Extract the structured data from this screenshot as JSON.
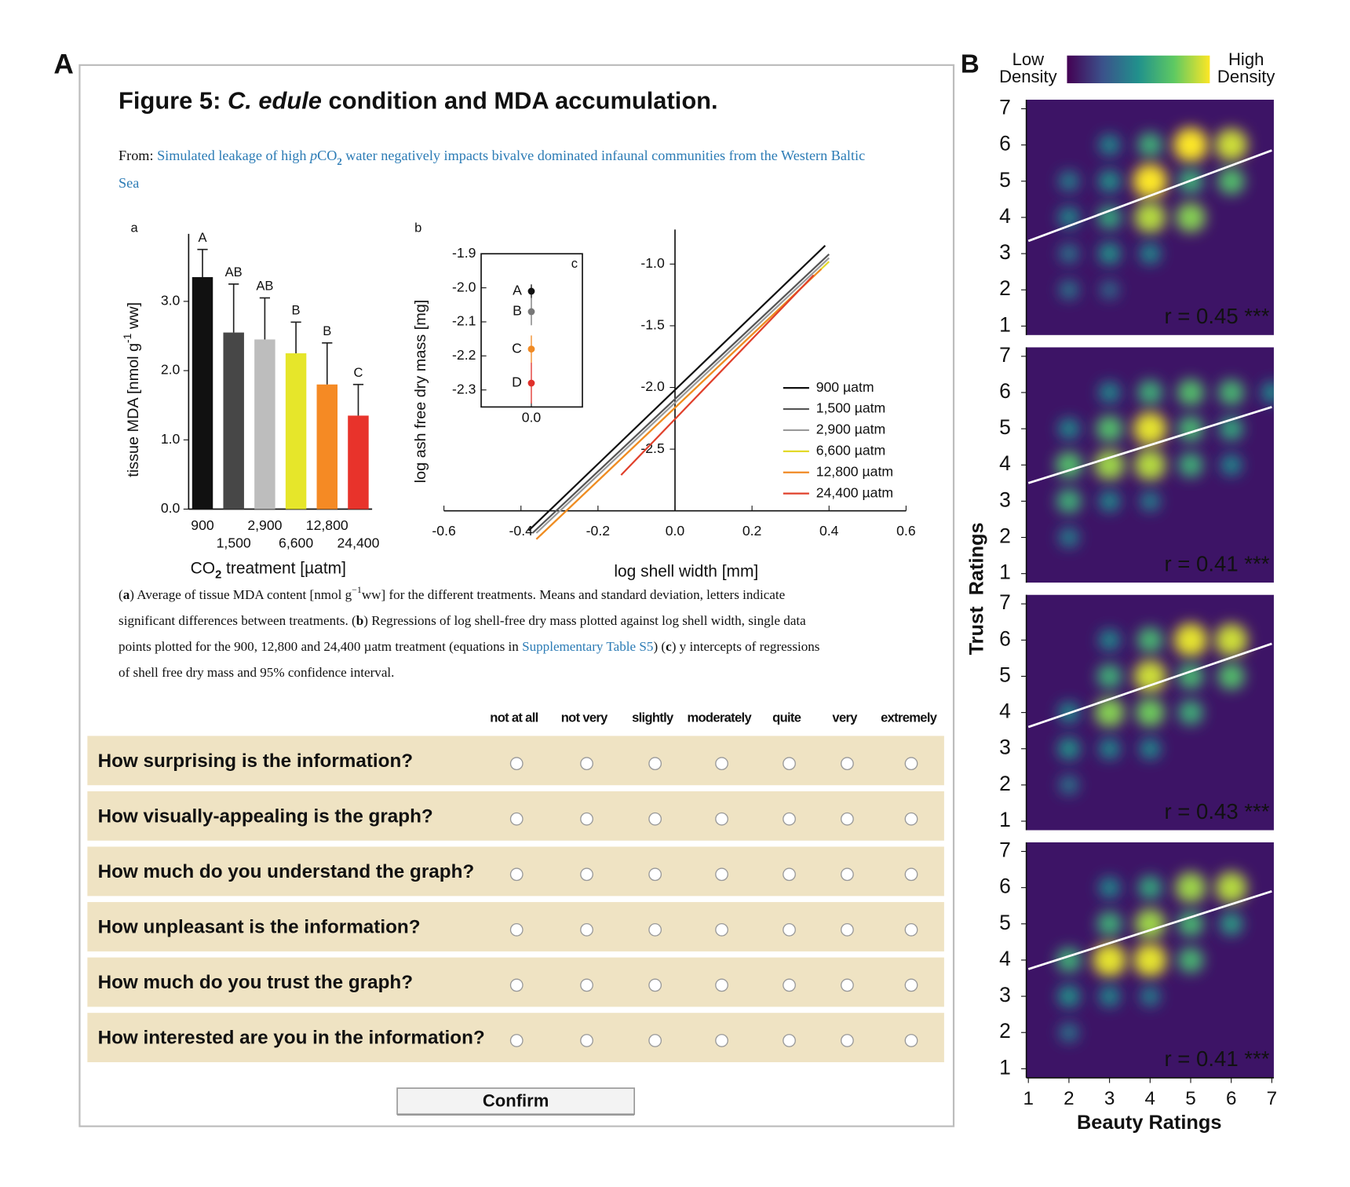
{
  "panel_a": {
    "label": "A",
    "title": [
      {
        "text": "Figure 5: "
      },
      {
        "text": "C. edule",
        "style": "i"
      },
      {
        "text": " condition and MDA accumulation."
      }
    ],
    "source": [
      [
        {
          "text": "From: "
        },
        {
          "text": "Simulated leakage of high ",
          "style": "link"
        },
        {
          "text": "p",
          "style": "link i"
        },
        {
          "text": "CO",
          "style": "link"
        },
        {
          "text": "2",
          "style": "link sub"
        },
        {
          "text": " water negatively impacts bivalve dominated infaunal communities from the Western Baltic",
          "style": "link"
        }
      ],
      [
        {
          "text": "Sea",
          "style": "link"
        }
      ]
    ],
    "bar_chart": {
      "type": "bar",
      "label": "a",
      "categories": [
        "900",
        "1,500",
        "2,900",
        "6,600",
        "12,800",
        "24,400"
      ],
      "values": [
        3.35,
        2.55,
        2.45,
        2.25,
        1.8,
        1.35
      ],
      "errors": [
        0.4,
        0.7,
        0.6,
        0.45,
        0.6,
        0.45
      ],
      "letters": [
        "A",
        "AB",
        "AB",
        "B",
        "B",
        "C"
      ],
      "colors": [
        "#111111",
        "#474747",
        "#bdbdbd",
        "#e6e62a",
        "#f58a24",
        "#e8332b"
      ],
      "ylim": [
        0,
        3.9
      ],
      "yticks": [
        {
          "value": 0,
          "label": "0.0"
        },
        {
          "value": 1,
          "label": "1.0"
        },
        {
          "value": 2,
          "label": "2.0"
        },
        {
          "value": 3,
          "label": "3.0"
        }
      ],
      "ylabel": [
        {
          "text": "tissue MDA [nmol g"
        },
        {
          "text": "-1",
          "style": "sup"
        },
        {
          "text": " ww]"
        }
      ],
      "xlabel": [
        {
          "text": "CO"
        },
        {
          "text": "2",
          "style": "sub"
        },
        {
          "text": " treatment [µatm]"
        }
      ]
    },
    "regression_chart": {
      "type": "line",
      "label": "b",
      "series": [
        {
          "name": "900 µatm",
          "color": "#111111",
          "x": [
            -0.38,
            0.39
          ],
          "y": [
            -3.16,
            -0.85
          ]
        },
        {
          "name": "1,500 µatm",
          "color": "#555555",
          "x": [
            -0.37,
            0.4
          ],
          "y": [
            -3.18,
            -0.92
          ]
        },
        {
          "name": "2,900 µatm",
          "color": "#9a9a9a",
          "x": [
            -0.36,
            0.4
          ],
          "y": [
            -3.18,
            -0.95
          ]
        },
        {
          "name": "6,600 µatm",
          "color": "#e3d92a",
          "x": [
            -0.35,
            0.4
          ],
          "y": [
            -3.2,
            -0.98
          ]
        },
        {
          "name": "12,800 µatm",
          "color": "#f08a24",
          "x": [
            -0.36,
            0.38
          ],
          "y": [
            -3.23,
            -1.04
          ]
        },
        {
          "name": "24,400 µatm",
          "color": "#e0402b",
          "x": [
            -0.14,
            0.36
          ],
          "y": [
            -2.71,
            -1.09
          ]
        }
      ],
      "xlim": [
        -0.6,
        0.6
      ],
      "ylim": [
        -3.0,
        -0.72
      ],
      "xticks": [
        -0.6,
        -0.4,
        -0.2,
        {
          "value": 0,
          "label": "0.0"
        },
        0.2,
        0.4,
        0.6
      ],
      "yticks": [
        {
          "value": -1,
          "label": "-1.0"
        },
        -1.5,
        {
          "value": -2,
          "label": "-2.0"
        },
        -2.5
      ],
      "xlabel": "log shell width [mm]",
      "ylabel": "log ash free dry mass [mg]",
      "inset": {
        "label": "c",
        "categories": [
          "A",
          "B",
          "C",
          "D"
        ],
        "values": [
          -2.01,
          -2.07,
          -2.18,
          -2.28
        ],
        "errors": [
          0.02,
          0.04,
          0.04,
          0.06
        ],
        "colors": [
          "#111111",
          "#777777",
          "#f08a24",
          "#e0302b"
        ],
        "ylim": [
          -2.35,
          -1.9
        ],
        "yticks": [
          -1.9,
          {
            "value": -2,
            "label": "-2.0"
          },
          -2.1,
          -2.2,
          -2.3
        ],
        "xticks": [
          {
            "value": 0,
            "label": "0.0"
          }
        ]
      }
    },
    "caption": [
      [
        {
          "text": "("
        },
        {
          "text": "a",
          "style": "b"
        },
        {
          "text": ") Average of tissue MDA content [nmol g"
        },
        {
          "text": "−1",
          "style": "sup"
        },
        {
          "text": "ww] for the different treatments. Means and standard deviation, letters indicate"
        }
      ],
      [
        {
          "text": "significant differences between treatments. ("
        },
        {
          "text": "b",
          "style": "b"
        },
        {
          "text": ") Regressions of log shell-free dry mass plotted against log shell width, single data"
        }
      ],
      [
        {
          "text": "points plotted for the 900, 12,800 and 24,400 µatm treatment (equations in "
        },
        {
          "text": "Supplementary Table S5",
          "style": "link"
        },
        {
          "text": ") ("
        },
        {
          "text": "c",
          "style": "b"
        },
        {
          "text": ") y intercepts of regressions"
        }
      ],
      [
        {
          "text": "of shell free dry mass and 95% confidence interval."
        }
      ]
    ],
    "scale_labels": [
      "not at all",
      "not very",
      "slightly",
      "moderately",
      "quite",
      "very",
      "extremely"
    ],
    "questions": [
      "How surprising is the information?",
      "How visually-appealing is the graph?",
      "How much do you understand the graph?",
      "How unpleasant is the information?",
      "How much do you trust the graph?",
      "How interested are you in the information?"
    ],
    "button": "Confirm"
  },
  "panel_b": {
    "label": "B",
    "legend_low": [
      "Low",
      "Density"
    ],
    "legend_high": [
      "High",
      "Density"
    ],
    "xlabel": "Beauty Ratings",
    "ylabel": "Trust  Ratings",
    "xlim": [
      0.95,
      7.05
    ],
    "ylim": [
      0.75,
      7.25
    ],
    "xticks": [
      1,
      2,
      3,
      4,
      5,
      6,
      7
    ],
    "yticks": [
      1,
      2,
      3,
      4,
      5,
      6,
      7
    ],
    "heatmaps": [
      {
        "r_label": "r = 0.45 ***",
        "fit": {
          "x": [
            1,
            7
          ],
          "y": [
            3.35,
            5.85
          ]
        },
        "hotspots": [
          [
            3,
            6,
            0.3
          ],
          [
            4,
            6,
            0.5
          ],
          [
            5,
            6,
            1
          ],
          [
            6,
            6,
            0.9
          ],
          [
            2,
            5,
            0.25
          ],
          [
            3,
            5,
            0.35
          ],
          [
            4,
            5,
            1
          ],
          [
            5,
            5,
            0.5
          ],
          [
            6,
            5,
            0.6
          ],
          [
            2,
            4,
            0.3
          ],
          [
            3,
            4,
            0.45
          ],
          [
            4,
            4,
            0.85
          ],
          [
            5,
            4,
            0.75
          ],
          [
            2,
            3,
            0.2
          ],
          [
            3,
            3,
            0.35
          ],
          [
            4,
            3,
            0.3
          ],
          [
            2,
            2,
            0.2
          ],
          [
            3,
            2,
            0.15
          ]
        ]
      },
      {
        "r_label": "r = 0.41 ***",
        "fit": {
          "x": [
            1,
            7
          ],
          "y": [
            3.5,
            5.6
          ]
        },
        "hotspots": [
          [
            3,
            6,
            0.3
          ],
          [
            4,
            6,
            0.5
          ],
          [
            5,
            6,
            0.6
          ],
          [
            6,
            6,
            0.55
          ],
          [
            7,
            6,
            0.3
          ],
          [
            2,
            5,
            0.3
          ],
          [
            3,
            5,
            0.6
          ],
          [
            4,
            5,
            0.95
          ],
          [
            5,
            5,
            0.55
          ],
          [
            6,
            5,
            0.45
          ],
          [
            2,
            4,
            0.6
          ],
          [
            3,
            4,
            0.8
          ],
          [
            4,
            4,
            0.85
          ],
          [
            5,
            4,
            0.5
          ],
          [
            6,
            4,
            0.3
          ],
          [
            2,
            3,
            0.5
          ],
          [
            3,
            3,
            0.3
          ],
          [
            4,
            3,
            0.25
          ],
          [
            2,
            2,
            0.25
          ]
        ]
      },
      {
        "r_label": "r = 0.43 ***",
        "fit": {
          "x": [
            1,
            7
          ],
          "y": [
            3.6,
            5.9
          ]
        },
        "hotspots": [
          [
            3,
            6,
            0.3
          ],
          [
            4,
            6,
            0.55
          ],
          [
            5,
            6,
            0.95
          ],
          [
            6,
            6,
            0.9
          ],
          [
            3,
            5,
            0.5
          ],
          [
            4,
            5,
            0.9
          ],
          [
            5,
            5,
            0.55
          ],
          [
            6,
            5,
            0.6
          ],
          [
            2,
            4,
            0.3
          ],
          [
            3,
            4,
            0.75
          ],
          [
            4,
            4,
            0.7
          ],
          [
            5,
            4,
            0.5
          ],
          [
            2,
            3,
            0.35
          ],
          [
            3,
            3,
            0.3
          ],
          [
            4,
            3,
            0.3
          ],
          [
            2,
            2,
            0.2
          ]
        ]
      },
      {
        "r_label": "r = 0.41 ***",
        "fit": {
          "x": [
            1,
            7
          ],
          "y": [
            3.75,
            5.9
          ]
        },
        "hotspots": [
          [
            3,
            6,
            0.3
          ],
          [
            4,
            6,
            0.45
          ],
          [
            5,
            6,
            0.8
          ],
          [
            6,
            6,
            0.85
          ],
          [
            3,
            5,
            0.5
          ],
          [
            4,
            5,
            0.8
          ],
          [
            5,
            5,
            0.55
          ],
          [
            6,
            5,
            0.4
          ],
          [
            2,
            4,
            0.5
          ],
          [
            3,
            4,
            0.95
          ],
          [
            4,
            4,
            0.95
          ],
          [
            5,
            4,
            0.55
          ],
          [
            2,
            3,
            0.35
          ],
          [
            3,
            3,
            0.3
          ],
          [
            4,
            3,
            0.25
          ],
          [
            2,
            2,
            0.2
          ]
        ]
      }
    ]
  }
}
